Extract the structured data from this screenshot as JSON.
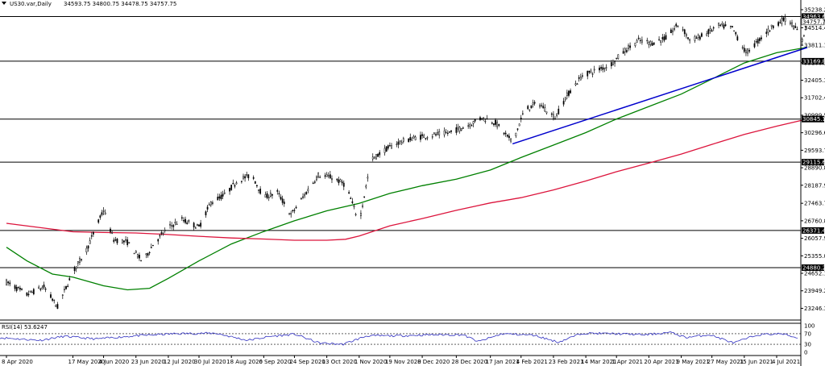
{
  "header": {
    "symbol": "US30.var,Daily",
    "ohlc": "34593.75 34800.75 34478.75 34757.75"
  },
  "rsi": {
    "label": "RSI(14) 53.6247",
    "scale": [
      "100",
      "70",
      "30",
      "0"
    ],
    "levels": [
      70,
      30
    ],
    "anchors": [
      [
        0,
        55
      ],
      [
        0.05,
        45
      ],
      [
        0.08,
        60
      ],
      [
        0.12,
        50
      ],
      [
        0.17,
        62
      ],
      [
        0.22,
        70
      ],
      [
        0.27,
        72
      ],
      [
        0.31,
        45
      ],
      [
        0.34,
        60
      ],
      [
        0.37,
        68
      ],
      [
        0.4,
        35
      ],
      [
        0.43,
        30
      ],
      [
        0.46,
        62
      ],
      [
        0.5,
        62
      ],
      [
        0.54,
        66
      ],
      [
        0.58,
        66
      ],
      [
        0.6,
        40
      ],
      [
        0.63,
        70
      ],
      [
        0.67,
        64
      ],
      [
        0.7,
        38
      ],
      [
        0.73,
        72
      ],
      [
        0.77,
        70
      ],
      [
        0.81,
        66
      ],
      [
        0.84,
        75
      ],
      [
        0.86,
        56
      ],
      [
        0.89,
        66
      ],
      [
        0.92,
        35
      ],
      [
        0.95,
        66
      ],
      [
        0.98,
        70
      ],
      [
        1,
        54
      ]
    ]
  },
  "colors": {
    "ma_green": "#008000",
    "ma_red": "#dc143c",
    "trendline": "#0000cc",
    "rsi_line": "#3030c0",
    "candles": "#000000"
  },
  "chart_data": {
    "type": "candlestick",
    "ylim": [
      22840,
      35238.2
    ],
    "y_ticks": [
      35238.2,
      34514.4,
      33811.1,
      33108.3,
      32405.3,
      31702.4,
      30999.5,
      30296.6,
      29593.7,
      28890.8,
      28187.9,
      27463.7,
      26760.8,
      26057.9,
      25355.0,
      24652.1,
      23949.2,
      23246.3
    ],
    "x_labels": [
      "8 Apr 2020",
      "17 May 2020",
      "4 Jun 2020",
      "23 Jun 2020",
      "12 Jul 2020",
      "30 Jul 2020",
      "18 Aug 2020",
      "6 Sep 2020",
      "24 Sep 2020",
      "13 Oct 2020",
      "1 Nov 2020",
      "19 Nov 2020",
      "8 Dec 2020",
      "28 Dec 2020",
      "17 Jan 2021",
      "4 Feb 2021",
      "23 Feb 2021",
      "14 Mar 2021",
      "1 Apr 2021",
      "20 Apr 2021",
      "9 May 2021",
      "27 May 2021",
      "15 Jun 2021",
      "4 Jul 2021"
    ],
    "horizontal_levels": [
      "34963.61",
      "33169.87",
      "30845.12",
      "29115.64",
      "26371.49",
      "24880.28"
    ],
    "current_price": "34757.75",
    "price_path": [
      [
        "8 Apr 2020",
        24300
      ],
      [
        "20 Apr 2020",
        23800
      ],
      [
        "30 Apr 2020",
        24100
      ],
      [
        "8 May 2020",
        23300
      ],
      [
        "17 May 2020",
        24700
      ],
      [
        "25 May 2020",
        25600
      ],
      [
        "4 Jun 2020",
        27200
      ],
      [
        "10 Jun 2020",
        26000
      ],
      [
        "18 Jun 2020",
        25900
      ],
      [
        "27 Jun 2020",
        25100
      ],
      [
        "3 Jul 2020",
        25800
      ],
      [
        "12 Jul 2020",
        26500
      ],
      [
        "20 Jul 2020",
        26800
      ],
      [
        "30 Jul 2020",
        26500
      ],
      [
        "6 Aug 2020",
        27500
      ],
      [
        "14 Aug 2020",
        27800
      ],
      [
        "22 Aug 2020",
        28400
      ],
      [
        "30 Aug 2020",
        28600
      ],
      [
        "6 Sep 2020",
        27700
      ],
      [
        "14 Sep 2020",
        27900
      ],
      [
        "22 Sep 2020",
        27000
      ],
      [
        "30 Sep 2020",
        27800
      ],
      [
        "8 Oct 2020",
        28600
      ],
      [
        "16 Oct 2020",
        28500
      ],
      [
        "24 Oct 2020",
        28200
      ],
      [
        "1 Nov 2020",
        26700
      ],
      [
        "8 Nov 2020",
        29200
      ],
      [
        "16 Nov 2020",
        29600
      ],
      [
        "24 Nov 2020",
        29900
      ],
      [
        "4 Dec 2020",
        30100
      ],
      [
        "14 Dec 2020",
        30200
      ],
      [
        "24 Dec 2020",
        30300
      ],
      [
        "4 Jan 2021",
        30600
      ],
      [
        "12 Jan 2021",
        30900
      ],
      [
        "20 Jan 2021",
        30700
      ],
      [
        "30 Jan 2021",
        29900
      ],
      [
        "6 Feb 2021",
        31200
      ],
      [
        "14 Feb 2021",
        31500
      ],
      [
        "24 Feb 2021",
        30900
      ],
      [
        "3 Mar 2021",
        31800
      ],
      [
        "12 Mar 2021",
        32600
      ],
      [
        "20 Mar 2021",
        32800
      ],
      [
        "28 Mar 2021",
        33000
      ],
      [
        "6 Apr 2021",
        33600
      ],
      [
        "14 Apr 2021",
        34000
      ],
      [
        "22 Apr 2021",
        33900
      ],
      [
        "30 Apr 2021",
        34100
      ],
      [
        "8 May 2021",
        34700
      ],
      [
        "14 May 2021",
        34000
      ],
      [
        "22 May 2021",
        34200
      ],
      [
        "31 May 2021",
        34600
      ],
      [
        "8 Jun 2021",
        34500
      ],
      [
        "16 Jun 2021",
        33500
      ],
      [
        "22 Jun 2021",
        33900
      ],
      [
        "2 Jul 2021",
        34600
      ],
      [
        "10 Jul 2021",
        34900
      ],
      [
        "16 Jul 2021",
        34400
      ],
      [
        "19 Jul 2021",
        34000
      ],
      [
        "22 Jul 2021",
        34757.75
      ]
    ],
    "series": [
      {
        "name": "",
        "values": [
          [
            "8 Apr 2020",
            25700
          ],
          [
            "20 Apr 2020",
            25150
          ],
          [
            "5 May 2020",
            24620
          ],
          [
            "17 May 2020",
            24500
          ],
          [
            "4 Jun 2020",
            24150
          ],
          [
            "18 Jun 2020",
            23990
          ],
          [
            "1 Jul 2020",
            24050
          ],
          [
            "12 Jul 2020",
            24450
          ],
          [
            "30 Jul 2020",
            25150
          ],
          [
            "18 Aug 2020",
            25830
          ],
          [
            "6 Sep 2020",
            26330
          ],
          [
            "24 Sep 2020",
            26760
          ],
          [
            "13 Oct 2020",
            27160
          ],
          [
            "1 Nov 2020",
            27460
          ],
          [
            "19 Nov 2020",
            27860
          ],
          [
            "8 Dec 2020",
            28170
          ],
          [
            "28 Dec 2020",
            28430
          ],
          [
            "17 Jan 2021",
            28800
          ],
          [
            "4 Feb 2021",
            29300
          ],
          [
            "23 Feb 2021",
            29800
          ],
          [
            "14 Mar 2021",
            30300
          ],
          [
            "1 Apr 2021",
            30850
          ],
          [
            "20 Apr 2021",
            31350
          ],
          [
            "9 May 2021",
            31850
          ],
          [
            "27 May 2021",
            32450
          ],
          [
            "15 Jun 2021",
            33100
          ],
          [
            "4 Jul 2021",
            33510
          ],
          [
            "22 Jul 2021",
            33730
          ]
        ]
      },
      {
        "name": "",
        "values": [
          [
            "8 Apr 2020",
            26660
          ],
          [
            "17 May 2020",
            26320
          ],
          [
            "4 Jun 2020",
            26290
          ],
          [
            "23 Jun 2020",
            26270
          ],
          [
            "12 Jul 2020",
            26210
          ],
          [
            "30 Jul 2020",
            26140
          ],
          [
            "18 Aug 2020",
            26070
          ],
          [
            "6 Sep 2020",
            26030
          ],
          [
            "24 Sep 2020",
            25980
          ],
          [
            "13 Oct 2020",
            25980
          ],
          [
            "24 Oct 2020",
            26020
          ],
          [
            "1 Nov 2020",
            26150
          ],
          [
            "19 Nov 2020",
            26560
          ],
          [
            "8 Dec 2020",
            26850
          ],
          [
            "28 Dec 2020",
            27180
          ],
          [
            "17 Jan 2021",
            27480
          ],
          [
            "4 Feb 2021",
            27690
          ],
          [
            "23 Feb 2021",
            28000
          ],
          [
            "14 Mar 2021",
            28360
          ],
          [
            "1 Apr 2021",
            28730
          ],
          [
            "20 Apr 2021",
            29080
          ],
          [
            "9 May 2021",
            29440
          ],
          [
            "27 May 2021",
            29830
          ],
          [
            "15 Jun 2021",
            30230
          ],
          [
            "4 Jul 2021",
            30560
          ],
          [
            "22 Jul 2021",
            30850
          ]
        ]
      }
    ],
    "trendline": [
      [
        "30 Jan 2021",
        29850
      ],
      [
        "22 Jul 2021",
        33720
      ]
    ],
    "grid": false
  }
}
